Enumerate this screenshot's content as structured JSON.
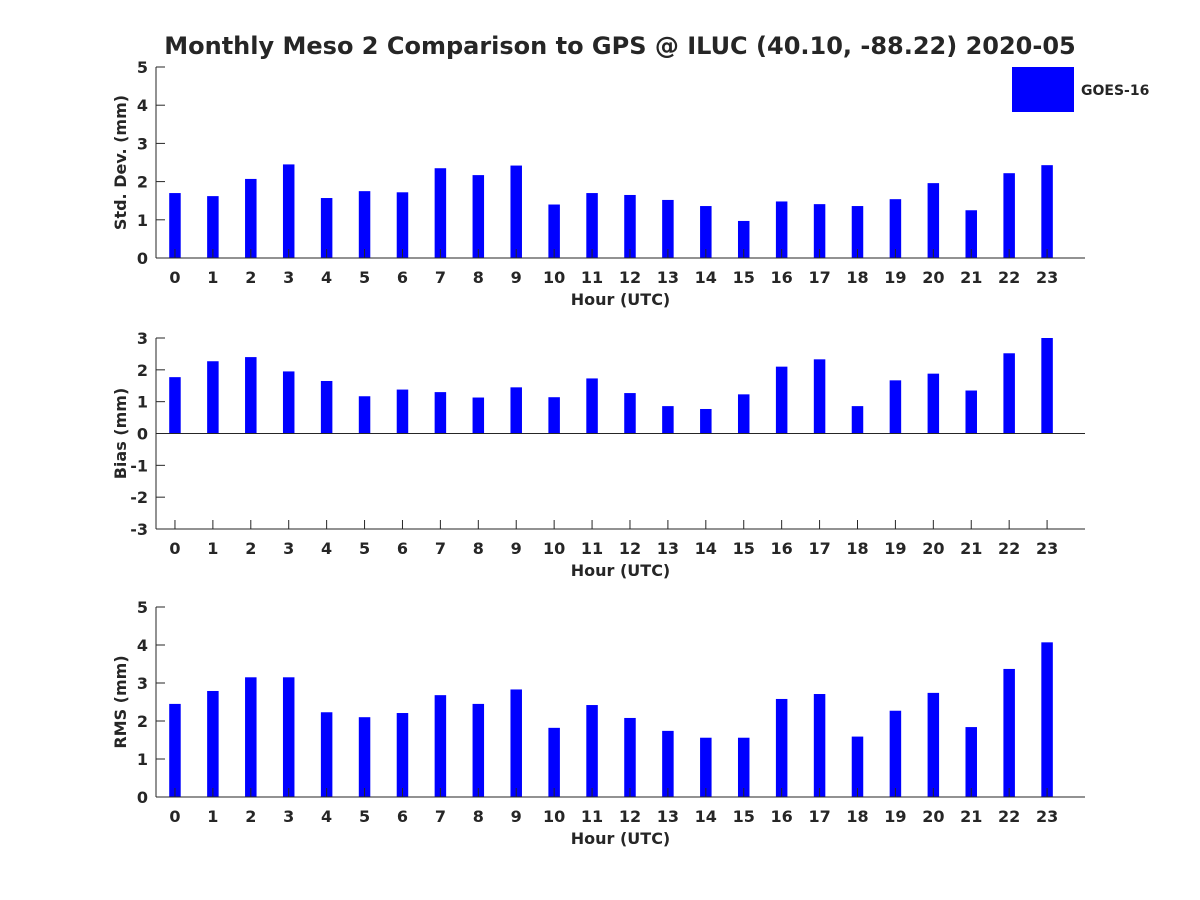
{
  "colors": {
    "bar": "#0000ff",
    "axis": "#262626",
    "background": "#ffffff"
  },
  "chart_data": {
    "type": "bar",
    "title": "Monthly Meso 2 Comparison to GPS @ ILUC (40.10, -88.22) 2020-05",
    "legend": {
      "placement": "top-right",
      "entries": [
        "GOES-16"
      ]
    },
    "categories": [
      "0",
      "1",
      "2",
      "3",
      "4",
      "5",
      "6",
      "7",
      "8",
      "9",
      "10",
      "11",
      "12",
      "13",
      "14",
      "15",
      "16",
      "17",
      "18",
      "19",
      "20",
      "21",
      "22",
      "23"
    ],
    "panels": [
      {
        "name": "std_dev",
        "xlabel": "Hour (UTC)",
        "ylabel": "Std. Dev. (mm)",
        "ylim": [
          0,
          5
        ],
        "yticks": [
          "0",
          "1",
          "2",
          "3",
          "4",
          "5"
        ],
        "grid": false,
        "series": [
          {
            "name": "GOES-16",
            "values": [
              1.7,
              1.62,
              2.07,
              2.45,
              1.57,
              1.75,
              1.72,
              2.35,
              2.17,
              2.42,
              1.4,
              1.7,
              1.65,
              1.52,
              1.36,
              0.97,
              1.48,
              1.41,
              1.36,
              1.54,
              1.96,
              1.25,
              2.22,
              2.43
            ]
          }
        ]
      },
      {
        "name": "bias",
        "xlabel": "Hour (UTC)",
        "ylabel": "Bias (mm)",
        "ylim": [
          -3,
          3
        ],
        "yticks": [
          "-3",
          "-2",
          "-1",
          "0",
          "1",
          "2",
          "3"
        ],
        "grid": false,
        "series": [
          {
            "name": "GOES-16",
            "values": [
              1.77,
              2.27,
              2.4,
              1.95,
              1.65,
              1.17,
              1.38,
              1.3,
              1.13,
              1.45,
              1.14,
              1.73,
              1.27,
              0.86,
              0.77,
              1.23,
              2.1,
              2.33,
              0.86,
              1.67,
              1.88,
              1.35,
              2.52,
              3.0
            ]
          }
        ]
      },
      {
        "name": "rms",
        "xlabel": "Hour (UTC)",
        "ylabel": "RMS (mm)",
        "ylim": [
          0,
          5
        ],
        "yticks": [
          "0",
          "1",
          "2",
          "3",
          "4",
          "5"
        ],
        "grid": false,
        "series": [
          {
            "name": "GOES-16",
            "values": [
              2.45,
              2.79,
              3.15,
              3.15,
              2.23,
              2.1,
              2.21,
              2.68,
              2.45,
              2.83,
              1.82,
              2.42,
              2.08,
              1.74,
              1.56,
              1.56,
              2.58,
              2.71,
              1.59,
              2.27,
              2.74,
              1.84,
              3.37,
              4.07
            ]
          }
        ]
      }
    ]
  }
}
